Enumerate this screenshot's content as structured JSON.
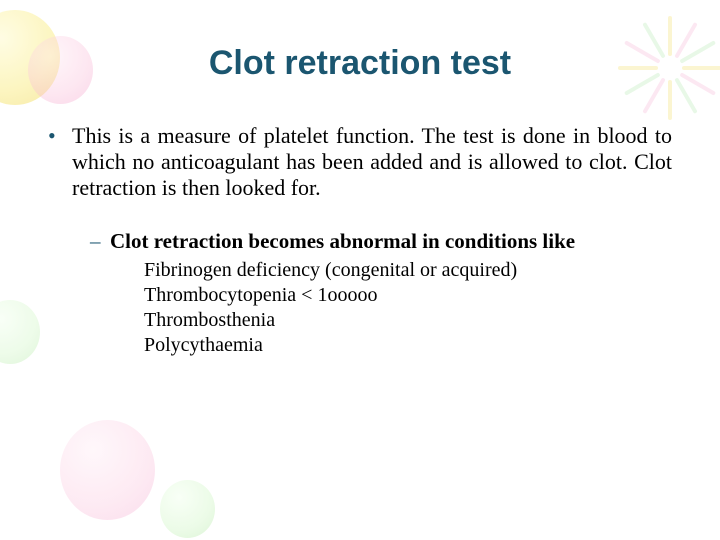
{
  "colors": {
    "title": "#1b5670",
    "bullet_marker": "#1b5670",
    "text": "#000000",
    "background": "#ffffff"
  },
  "typography": {
    "title_font": "Verdana",
    "title_size_pt": 34,
    "title_weight": "bold",
    "body_font": "Times New Roman",
    "body_size_pt": 22,
    "sub_heading_weight": "bold",
    "sub_items_size_pt": 20
  },
  "slide": {
    "title": "Clot retraction test",
    "bullet": "This is a measure of platelet function. The test is done in blood to which no anticoagulant has been added and is allowed to clot. Clot retraction is then looked for.",
    "sub_heading": "Clot retraction becomes abnormal in conditions like",
    "sub_items": [
      "Fibrinogen deficiency (congenital or acquired)",
      "Thrombocytopenia < 1ooooo",
      "Thrombosthenia",
      "Polycythaemia"
    ]
  }
}
